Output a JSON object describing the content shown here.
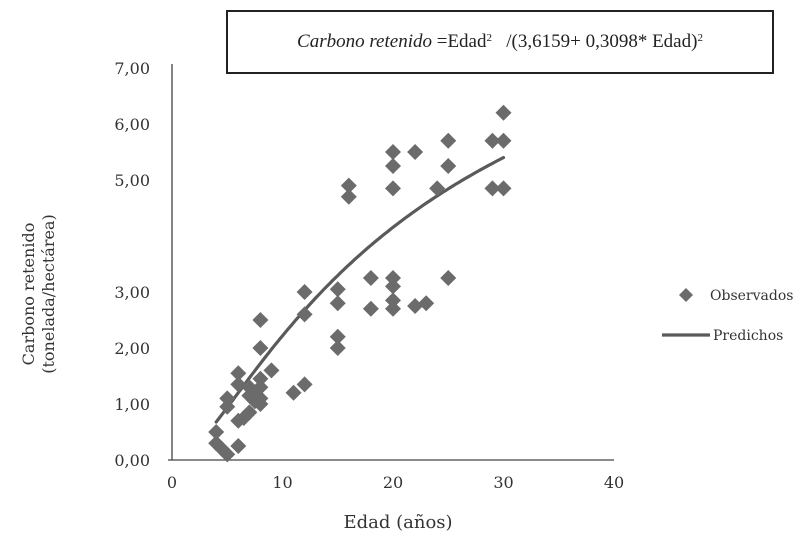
{
  "equation": {
    "lhs": "Carbono retenido",
    "eq_sign": "= ",
    "term1": "Edad",
    "exp1": "2",
    "div": "/(3,6159+ 0,3098* Edad)",
    "exp2": "2"
  },
  "chart_data": {
    "type": "scatter",
    "xlabel": "Edad (años)",
    "ylabel_lines": [
      "Carbono retenido",
      "(tonelada/hectárea)"
    ],
    "xlim": [
      0,
      40
    ],
    "ylim": [
      0,
      7
    ],
    "x_ticks": [
      0,
      10,
      20,
      30,
      40
    ],
    "x_tick_labels": [
      "0",
      "10",
      "20",
      "30",
      "40"
    ],
    "y_ticks": [
      0,
      1,
      2,
      3,
      5,
      6,
      7
    ],
    "y_tick_labels": [
      "0,00",
      "1,00",
      "2,00",
      "3,00",
      "5,00",
      "6,00",
      "7,00"
    ],
    "legend_position": "right",
    "colors": {
      "marker": "#6b6b6b",
      "line": "#5a5a5a",
      "axis": "#444444"
    },
    "series": [
      {
        "name": "Observados",
        "kind": "scatter",
        "points": [
          {
            "x": 4,
            "y": 0.5
          },
          {
            "x": 4,
            "y": 0.3
          },
          {
            "x": 4.5,
            "y": 0.2
          },
          {
            "x": 5,
            "y": 0.1
          },
          {
            "x": 5,
            "y": 0.95
          },
          {
            "x": 5,
            "y": 1.1
          },
          {
            "x": 6,
            "y": 0.25
          },
          {
            "x": 6,
            "y": 0.7
          },
          {
            "x": 6,
            "y": 1.35
          },
          {
            "x": 6,
            "y": 1.55
          },
          {
            "x": 6.5,
            "y": 0.75
          },
          {
            "x": 7,
            "y": 0.85
          },
          {
            "x": 7,
            "y": 1.15
          },
          {
            "x": 7,
            "y": 1.3
          },
          {
            "x": 7.5,
            "y": 1.05
          },
          {
            "x": 7.5,
            "y": 1.2
          },
          {
            "x": 8,
            "y": 1.0
          },
          {
            "x": 8,
            "y": 1.1
          },
          {
            "x": 8,
            "y": 1.3
          },
          {
            "x": 8,
            "y": 1.45
          },
          {
            "x": 8,
            "y": 2.0
          },
          {
            "x": 8,
            "y": 2.5
          },
          {
            "x": 9,
            "y": 1.6
          },
          {
            "x": 11,
            "y": 1.2
          },
          {
            "x": 12,
            "y": 1.35
          },
          {
            "x": 12,
            "y": 2.6
          },
          {
            "x": 12,
            "y": 3.0
          },
          {
            "x": 15,
            "y": 2.0
          },
          {
            "x": 15,
            "y": 2.2
          },
          {
            "x": 15,
            "y": 2.8
          },
          {
            "x": 15,
            "y": 3.05
          },
          {
            "x": 16,
            "y": 4.7
          },
          {
            "x": 16,
            "y": 4.9
          },
          {
            "x": 18,
            "y": 2.7
          },
          {
            "x": 18,
            "y": 3.25
          },
          {
            "x": 20,
            "y": 2.7
          },
          {
            "x": 20,
            "y": 2.85
          },
          {
            "x": 20,
            "y": 3.1
          },
          {
            "x": 20,
            "y": 3.25
          },
          {
            "x": 20,
            "y": 4.85
          },
          {
            "x": 20,
            "y": 5.25
          },
          {
            "x": 20,
            "y": 5.5
          },
          {
            "x": 22,
            "y": 2.75
          },
          {
            "x": 22,
            "y": 5.5
          },
          {
            "x": 23,
            "y": 2.8
          },
          {
            "x": 24,
            "y": 4.85
          },
          {
            "x": 25,
            "y": 3.25
          },
          {
            "x": 25,
            "y": 5.25
          },
          {
            "x": 25,
            "y": 5.7
          },
          {
            "x": 29,
            "y": 4.85
          },
          {
            "x": 29,
            "y": 5.7
          },
          {
            "x": 30,
            "y": 4.85
          },
          {
            "x": 30,
            "y": 5.7
          },
          {
            "x": 30,
            "y": 6.2
          }
        ]
      },
      {
        "name": "Predichos",
        "kind": "line",
        "x_range": [
          4,
          30
        ]
      }
    ]
  }
}
